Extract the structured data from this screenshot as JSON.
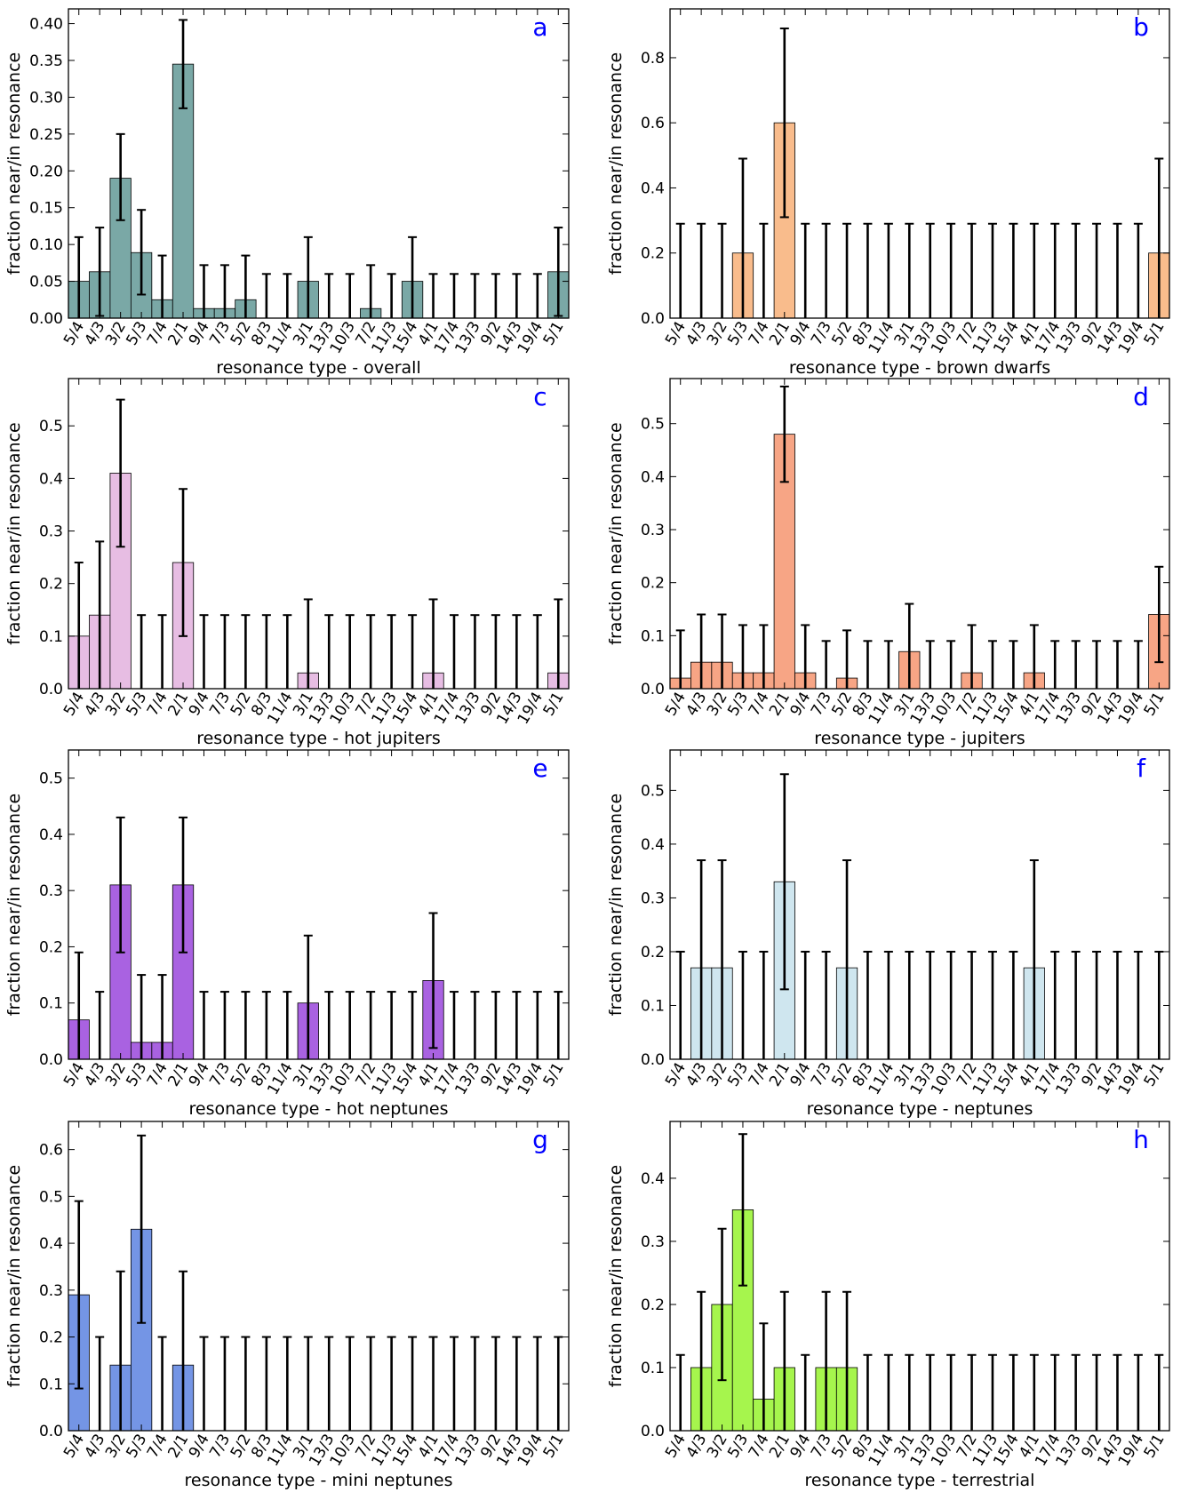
{
  "figure": {
    "letter_color": "#0000ff",
    "ylabel": "fraction near/in resonance",
    "categories": [
      "5/4",
      "4/3",
      "3/2",
      "5/3",
      "7/4",
      "2/1",
      "9/4",
      "7/3",
      "5/2",
      "8/3",
      "11/4",
      "3/1",
      "13/3",
      "10/3",
      "7/2",
      "11/3",
      "15/4",
      "4/1",
      "17/4",
      "13/3",
      "9/2",
      "14/3",
      "19/4",
      "5/1"
    ]
  },
  "chart_data": [
    {
      "type": "bar",
      "letter": "a",
      "xlabel": "resonance type - overall",
      "color": "#7aa8a6",
      "ylim": [
        0,
        0.42
      ],
      "yticks": [
        0.0,
        0.05,
        0.1,
        0.15,
        0.2,
        0.25,
        0.3,
        0.35,
        0.4
      ],
      "ytick_labels": [
        "0.00",
        "0.05",
        "0.10",
        "0.15",
        "0.20",
        "0.25",
        "0.30",
        "0.35",
        "0.40"
      ],
      "values": [
        0.05,
        0.063,
        0.19,
        0.089,
        0.025,
        0.345,
        0.013,
        0.013,
        0.025,
        0,
        0,
        0.05,
        0,
        0,
        0.013,
        0,
        0.05,
        0,
        0,
        0,
        0,
        0,
        0,
        0.063
      ],
      "err_low": [
        0,
        0.003,
        0.133,
        0.032,
        0,
        0.285,
        0,
        0,
        0,
        0,
        0,
        0,
        0,
        0,
        0,
        0,
        0,
        0,
        0,
        0,
        0,
        0,
        0,
        0.003
      ],
      "err_high": [
        0.11,
        0.123,
        0.25,
        0.147,
        0.085,
        0.405,
        0.072,
        0.072,
        0.085,
        0.06,
        0.06,
        0.11,
        0.06,
        0.06,
        0.072,
        0.06,
        0.11,
        0.06,
        0.06,
        0.06,
        0.06,
        0.06,
        0.06,
        0.123
      ]
    },
    {
      "type": "bar",
      "letter": "b",
      "xlabel": "resonance type - brown dwarfs",
      "color": "#f9bc8c",
      "ylim": [
        0,
        0.95
      ],
      "yticks": [
        0.0,
        0.2,
        0.4,
        0.6,
        0.8
      ],
      "ytick_labels": [
        "0.0",
        "0.2",
        "0.4",
        "0.6",
        "0.8"
      ],
      "values": [
        0,
        0,
        0,
        0.2,
        0,
        0.6,
        0,
        0,
        0,
        0,
        0,
        0,
        0,
        0,
        0,
        0,
        0,
        0,
        0,
        0,
        0,
        0,
        0,
        0.2
      ],
      "err_low": [
        0,
        0,
        0,
        0,
        0,
        0.31,
        0,
        0,
        0,
        0,
        0,
        0,
        0,
        0,
        0,
        0,
        0,
        0,
        0,
        0,
        0,
        0,
        0,
        0
      ],
      "err_high": [
        0.29,
        0.29,
        0.29,
        0.49,
        0.29,
        0.89,
        0.29,
        0.29,
        0.29,
        0.29,
        0.29,
        0.29,
        0.29,
        0.29,
        0.29,
        0.29,
        0.29,
        0.29,
        0.29,
        0.29,
        0.29,
        0.29,
        0.29,
        0.49
      ]
    },
    {
      "type": "bar",
      "letter": "c",
      "xlabel": "resonance type - hot jupiters",
      "color": "#e7bde3",
      "ylim": [
        0,
        0.59
      ],
      "yticks": [
        0.0,
        0.1,
        0.2,
        0.3,
        0.4,
        0.5
      ],
      "ytick_labels": [
        "0.0",
        "0.1",
        "0.2",
        "0.3",
        "0.4",
        "0.5"
      ],
      "values": [
        0.1,
        0.14,
        0.41,
        0,
        0,
        0.24,
        0,
        0,
        0,
        0,
        0,
        0.03,
        0,
        0,
        0,
        0,
        0,
        0.03,
        0,
        0,
        0,
        0,
        0,
        0.03
      ],
      "err_low": [
        0,
        0,
        0.27,
        0,
        0,
        0.1,
        0,
        0,
        0,
        0,
        0,
        0,
        0,
        0,
        0,
        0,
        0,
        0,
        0,
        0,
        0,
        0,
        0,
        0
      ],
      "err_high": [
        0.24,
        0.28,
        0.55,
        0.14,
        0.14,
        0.38,
        0.14,
        0.14,
        0.14,
        0.14,
        0.14,
        0.17,
        0.14,
        0.14,
        0.14,
        0.14,
        0.14,
        0.17,
        0.14,
        0.14,
        0.14,
        0.14,
        0.14,
        0.17
      ]
    },
    {
      "type": "bar",
      "letter": "d",
      "xlabel": "resonance type - jupiters",
      "color": "#f7a585",
      "ylim": [
        0,
        0.585
      ],
      "yticks": [
        0.0,
        0.1,
        0.2,
        0.3,
        0.4,
        0.5
      ],
      "ytick_labels": [
        "0.0",
        "0.1",
        "0.2",
        "0.3",
        "0.4",
        "0.5"
      ],
      "values": [
        0.02,
        0.05,
        0.05,
        0.03,
        0.03,
        0.48,
        0.03,
        0,
        0.02,
        0,
        0,
        0.07,
        0,
        0,
        0.03,
        0,
        0,
        0.03,
        0,
        0,
        0,
        0,
        0,
        0.14
      ],
      "err_low": [
        0,
        0,
        0,
        0,
        0,
        0.39,
        0,
        0,
        0,
        0,
        0,
        0,
        0,
        0,
        0,
        0,
        0,
        0,
        0,
        0,
        0,
        0,
        0,
        0.05
      ],
      "err_high": [
        0.11,
        0.14,
        0.14,
        0.12,
        0.12,
        0.57,
        0.12,
        0.09,
        0.11,
        0.09,
        0.09,
        0.16,
        0.09,
        0.09,
        0.12,
        0.09,
        0.09,
        0.12,
        0.09,
        0.09,
        0.09,
        0.09,
        0.09,
        0.23
      ]
    },
    {
      "type": "bar",
      "letter": "e",
      "xlabel": "resonance type - hot neptunes",
      "color": "#a962e1",
      "ylim": [
        0,
        0.55
      ],
      "yticks": [
        0.0,
        0.1,
        0.2,
        0.3,
        0.4,
        0.5
      ],
      "ytick_labels": [
        "0.0",
        "0.1",
        "0.2",
        "0.3",
        "0.4",
        "0.5"
      ],
      "values": [
        0.07,
        0,
        0.31,
        0.03,
        0.03,
        0.31,
        0,
        0,
        0,
        0,
        0,
        0.1,
        0,
        0,
        0,
        0,
        0,
        0.14,
        0,
        0,
        0,
        0,
        0,
        0
      ],
      "err_low": [
        0,
        0,
        0.19,
        0,
        0,
        0.19,
        0,
        0,
        0,
        0,
        0,
        0,
        0,
        0,
        0,
        0,
        0,
        0.02,
        0,
        0,
        0,
        0,
        0,
        0
      ],
      "err_high": [
        0.19,
        0.12,
        0.43,
        0.15,
        0.15,
        0.43,
        0.12,
        0.12,
        0.12,
        0.12,
        0.12,
        0.22,
        0.12,
        0.12,
        0.12,
        0.12,
        0.12,
        0.26,
        0.12,
        0.12,
        0.12,
        0.12,
        0.12,
        0.12
      ]
    },
    {
      "type": "bar",
      "letter": "f",
      "xlabel": "resonance type - neptunes",
      "color": "#cfe6ef",
      "ylim": [
        0,
        0.575
      ],
      "yticks": [
        0.0,
        0.1,
        0.2,
        0.3,
        0.4,
        0.5
      ],
      "ytick_labels": [
        "0.0",
        "0.1",
        "0.2",
        "0.3",
        "0.4",
        "0.5"
      ],
      "values": [
        0,
        0.17,
        0.17,
        0,
        0,
        0.33,
        0,
        0,
        0.17,
        0,
        0,
        0,
        0,
        0,
        0,
        0,
        0,
        0.17,
        0,
        0,
        0,
        0,
        0,
        0
      ],
      "err_low": [
        0,
        0,
        0,
        0,
        0,
        0.13,
        0,
        0,
        0,
        0,
        0,
        0,
        0,
        0,
        0,
        0,
        0,
        0,
        0,
        0,
        0,
        0,
        0,
        0
      ],
      "err_high": [
        0.2,
        0.37,
        0.37,
        0.2,
        0.2,
        0.53,
        0.2,
        0.2,
        0.37,
        0.2,
        0.2,
        0.2,
        0.2,
        0.2,
        0.2,
        0.2,
        0.2,
        0.37,
        0.2,
        0.2,
        0.2,
        0.2,
        0.2,
        0.2
      ]
    },
    {
      "type": "bar",
      "letter": "g",
      "xlabel": "resonance type - mini neptunes",
      "color": "#7495e5",
      "ylim": [
        0,
        0.66
      ],
      "yticks": [
        0.0,
        0.1,
        0.2,
        0.3,
        0.4,
        0.5,
        0.6
      ],
      "ytick_labels": [
        "0.0",
        "0.1",
        "0.2",
        "0.3",
        "0.4",
        "0.5",
        "0.6"
      ],
      "values": [
        0.29,
        0,
        0.14,
        0.43,
        0,
        0.14,
        0,
        0,
        0,
        0,
        0,
        0,
        0,
        0,
        0,
        0,
        0,
        0,
        0,
        0,
        0,
        0,
        0,
        0
      ],
      "err_low": [
        0.09,
        0,
        0,
        0.23,
        0,
        0,
        0,
        0,
        0,
        0,
        0,
        0,
        0,
        0,
        0,
        0,
        0,
        0,
        0,
        0,
        0,
        0,
        0,
        0
      ],
      "err_high": [
        0.49,
        0.2,
        0.34,
        0.63,
        0.2,
        0.34,
        0.2,
        0.2,
        0.2,
        0.2,
        0.2,
        0.2,
        0.2,
        0.2,
        0.2,
        0.2,
        0.2,
        0.2,
        0.2,
        0.2,
        0.2,
        0.2,
        0.2,
        0.2
      ]
    },
    {
      "type": "bar",
      "letter": "h",
      "xlabel": "resonance type - terrestrial",
      "color": "#a6f54d",
      "ylim": [
        0,
        0.49
      ],
      "yticks": [
        0.0,
        0.1,
        0.2,
        0.3,
        0.4
      ],
      "ytick_labels": [
        "0.0",
        "0.1",
        "0.2",
        "0.3",
        "0.4"
      ],
      "values": [
        0,
        0.1,
        0.2,
        0.35,
        0.05,
        0.1,
        0,
        0.1,
        0.1,
        0,
        0,
        0,
        0,
        0,
        0,
        0,
        0,
        0,
        0,
        0,
        0,
        0,
        0,
        0
      ],
      "err_low": [
        0,
        0,
        0.08,
        0.23,
        0,
        0,
        0,
        0,
        0,
        0,
        0,
        0,
        0,
        0,
        0,
        0,
        0,
        0,
        0,
        0,
        0,
        0,
        0,
        0
      ],
      "err_high": [
        0.12,
        0.22,
        0.32,
        0.47,
        0.17,
        0.22,
        0.12,
        0.22,
        0.22,
        0.12,
        0.12,
        0.12,
        0.12,
        0.12,
        0.12,
        0.12,
        0.12,
        0.12,
        0.12,
        0.12,
        0.12,
        0.12,
        0.12,
        0.12
      ]
    }
  ]
}
